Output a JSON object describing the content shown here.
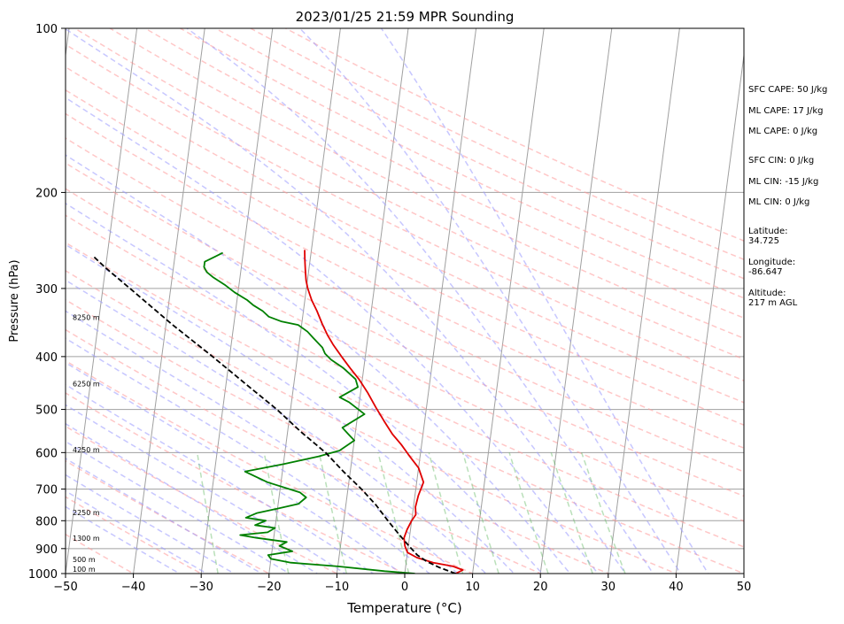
{
  "chart_data": {
    "type": "line",
    "title": "2023/01/25 21:59 MPR Sounding",
    "xlabel": "Temperature (°C)",
    "ylabel": "Pressure (hPa)",
    "xlim": [
      -50,
      50
    ],
    "ylim": [
      1000,
      100
    ],
    "y_scale": "log",
    "grid": true,
    "x_ticks": [
      -50,
      -40,
      -30,
      -20,
      -10,
      0,
      10,
      20,
      30,
      40,
      50
    ],
    "x_tick_labels": [
      "−50",
      "−40",
      "−30",
      "−20",
      "−10",
      "0",
      "10",
      "20",
      "30",
      "40",
      "50"
    ],
    "y_ticks": [
      100,
      200,
      300,
      400,
      500,
      600,
      700,
      800,
      900,
      1000
    ],
    "y_tick_labels": [
      "100",
      "200",
      "300",
      "400",
      "500",
      "600",
      "700",
      "800",
      "900",
      "1000"
    ],
    "height_labels": [
      {
        "p": 985,
        "text": "100 m"
      },
      {
        "p": 945,
        "text": "500 m"
      },
      {
        "p": 865,
        "text": "1300 m"
      },
      {
        "p": 775,
        "text": "2250 m"
      },
      {
        "p": 595,
        "text": "4250 m"
      },
      {
        "p": 450,
        "text": "6250 m"
      },
      {
        "p": 340,
        "text": "8250 m"
      }
    ],
    "series": [
      {
        "color": "#e00000",
        "points": [
          [
            7.5,
            1000
          ],
          [
            8.5,
            985
          ],
          [
            7.0,
            970
          ],
          [
            4.0,
            955
          ],
          [
            1.5,
            935
          ],
          [
            0,
            915
          ],
          [
            -0.5,
            890
          ],
          [
            -0.8,
            860
          ],
          [
            -0.5,
            830
          ],
          [
            0,
            800
          ],
          [
            0.5,
            780
          ],
          [
            0.3,
            755
          ],
          [
            0.5,
            720
          ],
          [
            1.0,
            680
          ],
          [
            0,
            640
          ],
          [
            -1.5,
            610
          ],
          [
            -3,
            580
          ],
          [
            -4.5,
            555
          ],
          [
            -6,
            525
          ],
          [
            -7.5,
            495
          ],
          [
            -9,
            465
          ],
          [
            -10.5,
            440
          ],
          [
            -12,
            420
          ],
          [
            -13.5,
            400
          ],
          [
            -15,
            380
          ],
          [
            -16,
            365
          ],
          [
            -17,
            348
          ],
          [
            -18,
            330
          ],
          [
            -19,
            315
          ],
          [
            -19.8,
            300
          ],
          [
            -20.2,
            290
          ],
          [
            -20.5,
            278
          ],
          [
            -20.8,
            265
          ],
          [
            -21.0,
            255
          ]
        ]
      },
      {
        "color": "#008000",
        "points": [
          [
            1.5,
            1000
          ],
          [
            -3,
            990
          ],
          [
            -10,
            970
          ],
          [
            -17,
            955
          ],
          [
            -20,
            940
          ],
          [
            -20.5,
            925
          ],
          [
            -17,
            910
          ],
          [
            -19,
            890
          ],
          [
            -18,
            875
          ],
          [
            -22.5,
            860
          ],
          [
            -25,
            850
          ],
          [
            -21,
            840
          ],
          [
            -20,
            825
          ],
          [
            -23,
            815
          ],
          [
            -21.5,
            800
          ],
          [
            -24.5,
            790
          ],
          [
            -23,
            775
          ],
          [
            -20,
            760
          ],
          [
            -17,
            745
          ],
          [
            -16,
            725
          ],
          [
            -17,
            710
          ],
          [
            -22,
            680
          ],
          [
            -25.5,
            650
          ],
          [
            -20,
            630
          ],
          [
            -15,
            610
          ],
          [
            -12,
            595
          ],
          [
            -10,
            570
          ],
          [
            -11,
            555
          ],
          [
            -12,
            540
          ],
          [
            -9,
            510
          ],
          [
            -11.5,
            485
          ],
          [
            -13,
            475
          ],
          [
            -10.5,
            455
          ],
          [
            -11,
            440
          ],
          [
            -13,
            420
          ],
          [
            -15,
            405
          ],
          [
            -16,
            395
          ],
          [
            -16.5,
            385
          ],
          [
            -18,
            370
          ],
          [
            -19,
            360
          ],
          [
            -20.5,
            350
          ],
          [
            -23,
            345
          ],
          [
            -25,
            338
          ],
          [
            -26,
            330
          ],
          [
            -27.5,
            322
          ],
          [
            -28.5,
            315
          ],
          [
            -30.5,
            305
          ],
          [
            -32,
            296
          ],
          [
            -34,
            286
          ],
          [
            -35,
            280
          ],
          [
            -35.5,
            274
          ],
          [
            -35.5,
            268
          ],
          [
            -34,
            262
          ],
          [
            -33,
            258
          ]
        ]
      },
      {
        "color": "#000000",
        "dashed": true,
        "points": [
          [
            7.5,
            1000
          ],
          [
            5.0,
            975
          ],
          [
            3.0,
            950
          ],
          [
            1.5,
            925
          ],
          [
            0.5,
            900
          ],
          [
            -0.5,
            875
          ],
          [
            -1.5,
            850
          ],
          [
            -2.5,
            825
          ],
          [
            -3.5,
            800
          ],
          [
            -5.5,
            750
          ],
          [
            -8,
            700
          ],
          [
            -11,
            650
          ],
          [
            -14,
            600
          ],
          [
            -18,
            550
          ],
          [
            -22,
            500
          ],
          [
            -27,
            450
          ],
          [
            -32.5,
            400
          ],
          [
            -39,
            350
          ],
          [
            -46,
            300
          ],
          [
            -50,
            275
          ],
          [
            -52,
            262
          ]
        ]
      }
    ]
  },
  "side_panel": [
    "SFC CAPE: 50 J/kg",
    "ML CAPE: 17 J/kg",
    "ML CAPE: 0 J/kg",
    "SFC CIN: 0 J/kg",
    "ML CIN: -15 J/kg",
    "ML CIN: 0 J/kg",
    "Latitude:",
    "34.725",
    "Longitude:",
    "-86.647",
    "Altitude:",
    "217 m AGL"
  ],
  "colors": {
    "dry_adiabat": "#ff9999",
    "moist_adiabat": "#9999ff",
    "mixing_ratio": "#66bb66",
    "isotherm": "#a0a0a0",
    "isobar": "#a0a0a0"
  }
}
